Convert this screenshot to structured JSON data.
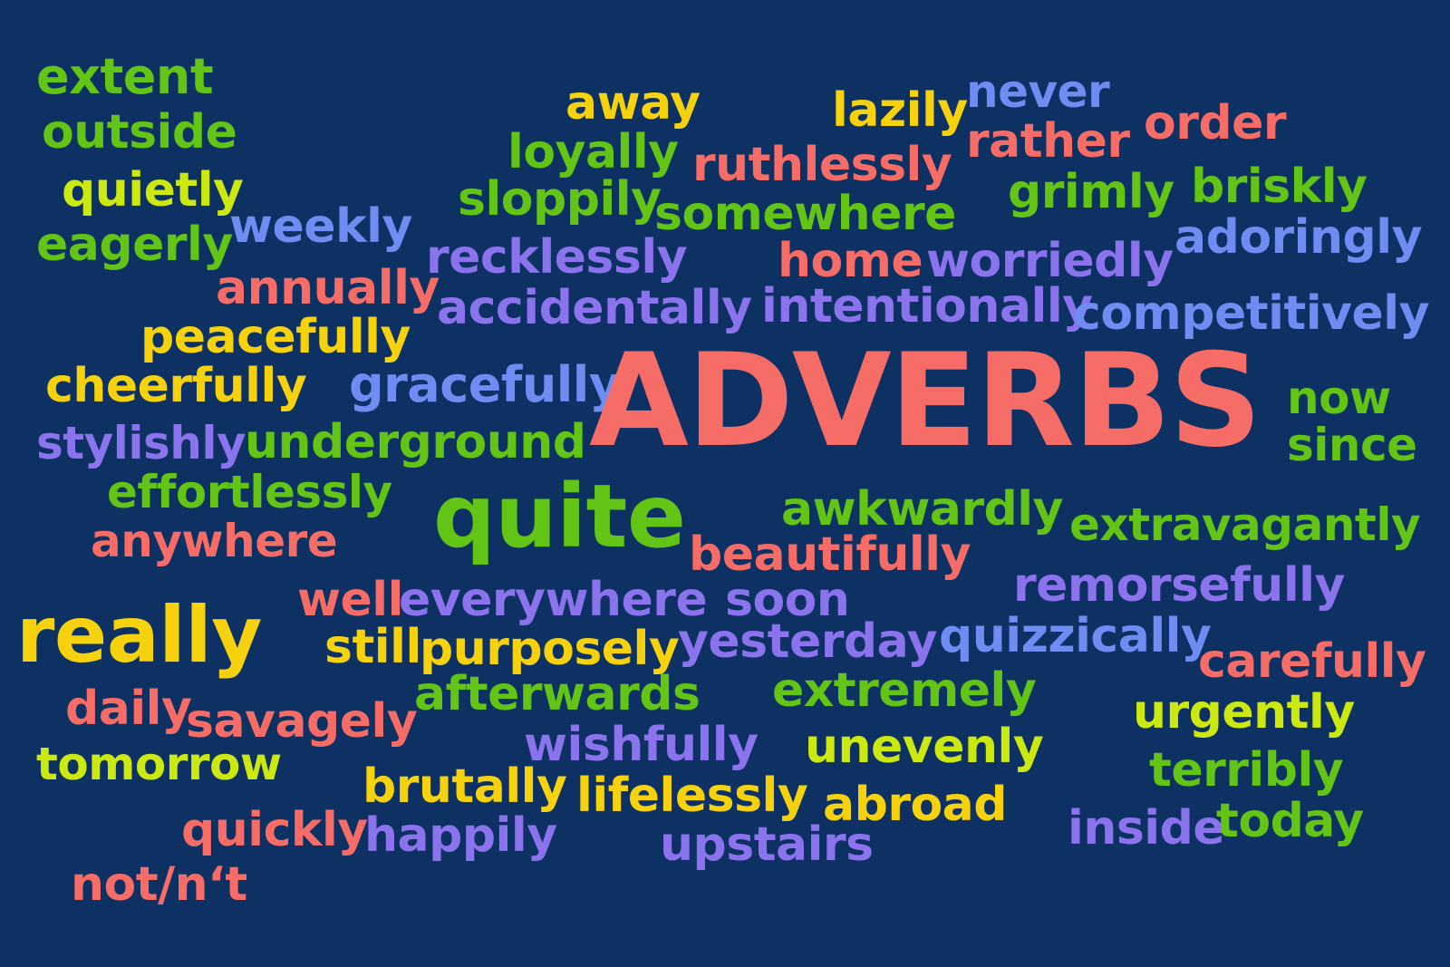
{
  "title": "ADVERBS",
  "colors": {
    "background": "#0d3163",
    "green": "#62c414",
    "lime": "#cbe810",
    "yellow": "#f6d20e",
    "coral": "#f66c66",
    "blue": "#6f8cf2",
    "violet": "#8b73ee"
  },
  "words": {
    "extent": "extent",
    "outside": "outside",
    "quietly": "quietly",
    "weekly": "weekly",
    "eagerly": "eagerly",
    "annually": "annually",
    "peacefully": "peacefully",
    "cheerfully": "cheerfully",
    "gracefully": "gracefully",
    "stylishly": "stylishly",
    "underground": "underground",
    "effortlessly": "effortlessly",
    "anywhere": "anywhere",
    "quite": "quite",
    "really": "really",
    "well": "well",
    "everywhere": "everywhere",
    "soon": "soon",
    "still": "still",
    "purposely": "purposely",
    "daily": "daily",
    "savagely": "savagely",
    "afterwards": "afterwards",
    "tomorrow": "tomorrow",
    "wishfully": "wishfully",
    "brutally": "brutally",
    "quickly": "quickly",
    "happily": "happily",
    "not_nt": "not/n‘t",
    "away": "away",
    "loyally": "loyally",
    "sloppily": "sloppily",
    "lazily": "lazily",
    "never": "never",
    "ruthlessly": "ruthlessly",
    "somewhere": "somewhere",
    "rather": "rather",
    "order": "order",
    "grimly": "grimly",
    "briskly": "briskly",
    "recklessly": "recklessly",
    "home": "home",
    "worriedly": "worriedly",
    "adoringly": "adoringly",
    "accidentally": "accidentally",
    "intentionally": "intentionally",
    "competitively": "competitively",
    "now": "now",
    "since": "since",
    "awkwardly": "awkwardly",
    "extravagantly": "extravagantly",
    "beautifully": "beautifully",
    "remorsefully": "remorsefully",
    "yesterday": "yesterday",
    "quizzically": "quizzically",
    "carefully": "carefully",
    "extremely": "extremely",
    "urgently": "urgently",
    "unevenly": "unevenly",
    "terribly": "terribly",
    "lifelessly": "lifelessly",
    "abroad": "abroad",
    "inside": "inside",
    "today": "today",
    "upstairs": "upstairs"
  }
}
